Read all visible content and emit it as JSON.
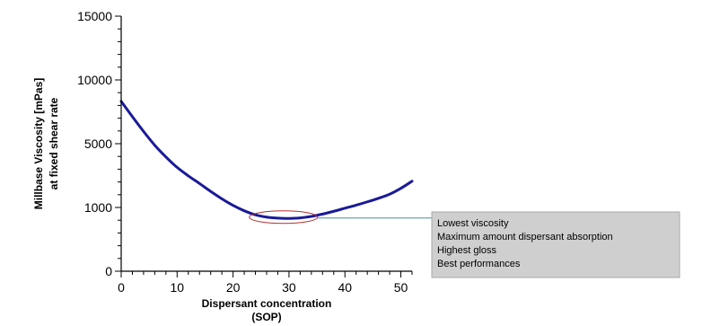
{
  "chart_data": {
    "type": "line",
    "title": "",
    "xlabel_lines": [
      "Dispersant concentration",
      "(SOP)"
    ],
    "ylabel_lines": [
      "Millbase Viscosity [mPas]",
      "at fixed shear rate"
    ],
    "x_ticks": [
      0,
      10,
      20,
      30,
      40,
      50
    ],
    "y_ticks": [
      0,
      1000,
      5000,
      10000,
      15000
    ],
    "xlim": [
      0,
      52
    ],
    "grid": false,
    "legend": "none",
    "series": [
      {
        "x": [
          0,
          2,
          4,
          6,
          8,
          10,
          12,
          14,
          16,
          18,
          20,
          22,
          24,
          26,
          28,
          30,
          32,
          34,
          36,
          38,
          40,
          42,
          44,
          46,
          48,
          50,
          52
        ],
        "y_position_on_axis": [
          0.666,
          0.606,
          0.548,
          0.494,
          0.448,
          0.407,
          0.374,
          0.344,
          0.313,
          0.284,
          0.258,
          0.237,
          0.221,
          0.212,
          0.208,
          0.207,
          0.209,
          0.215,
          0.224,
          0.235,
          0.247,
          0.259,
          0.272,
          0.286,
          0.302,
          0.325,
          0.353
        ]
      }
    ],
    "highlight": {
      "center_x": 29,
      "center_y_position_on_axis": 0.212
    },
    "annotation": {
      "lines": [
        "Lowest viscosity",
        "Maximum amount dispersant absorption",
        "Highest gloss",
        "Best performances"
      ]
    },
    "colors": {
      "curve": "#1a1a99",
      "ellipse": "#b03030",
      "leader": "#4a8f9a",
      "annotation_bg": "#cfcfcf",
      "annotation_border": "#a8a8a8"
    }
  }
}
